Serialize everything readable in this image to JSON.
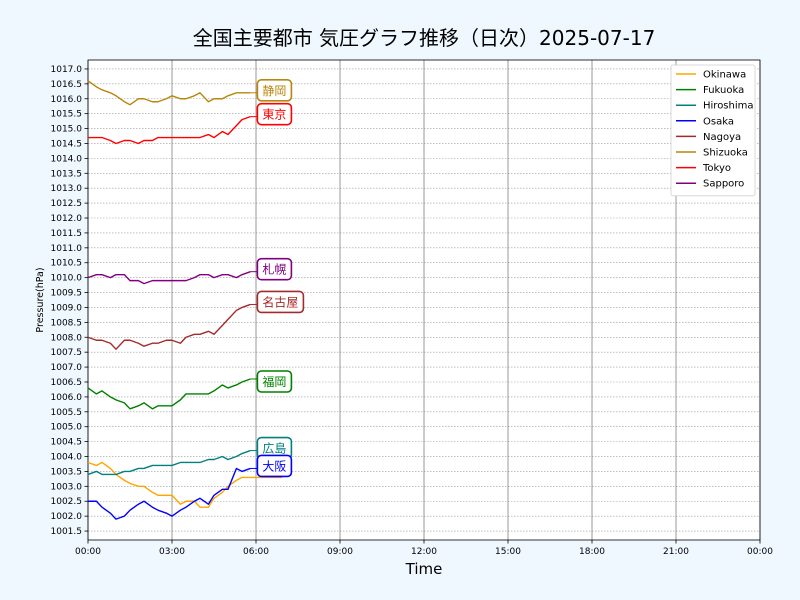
{
  "chart_data": {
    "type": "line",
    "title": "全国主要都市 気圧グラフ推移（日次）2025-07-17",
    "xlabel": "Time",
    "ylabel": "Pressure(hPa)",
    "x_ticks": [
      "00:00",
      "03:00",
      "06:00",
      "09:00",
      "12:00",
      "15:00",
      "18:00",
      "21:00",
      "00:00"
    ],
    "x_range_hours": [
      0,
      24
    ],
    "ylim": [
      1001.2,
      1017.3
    ],
    "y_tick_start": 1001.5,
    "y_tick_end": 1017.0,
    "y_tick_step": 0.5,
    "grid": true,
    "legend_position": "top-right",
    "x_hours": [
      0,
      0.3,
      0.5,
      0.8,
      1,
      1.3,
      1.5,
      1.8,
      2,
      2.3,
      2.5,
      2.8,
      3,
      3.3,
      3.5,
      3.8,
      4,
      4.3,
      4.5,
      4.8,
      5,
      5.3,
      5.5,
      5.8
    ],
    "series": [
      {
        "name": "Okinawa",
        "end_label": "",
        "color": "#ffa500",
        "values": [
          1003.8,
          1003.7,
          1003.8,
          1003.6,
          1003.4,
          1003.2,
          1003.1,
          1003.0,
          1003.0,
          1002.8,
          1002.7,
          1002.7,
          1002.7,
          1002.4,
          1002.5,
          1002.5,
          1002.3,
          1002.3,
          1002.6,
          1002.8,
          1003.0,
          1003.2,
          1003.3,
          1003.3
        ]
      },
      {
        "name": "Fukuoka",
        "end_label": "福岡",
        "color": "#008000",
        "values": [
          1006.3,
          1006.1,
          1006.2,
          1006.0,
          1005.9,
          1005.8,
          1005.6,
          1005.7,
          1005.8,
          1005.6,
          1005.7,
          1005.7,
          1005.7,
          1005.9,
          1006.1,
          1006.1,
          1006.1,
          1006.1,
          1006.2,
          1006.4,
          1006.3,
          1006.4,
          1006.5,
          1006.6
        ]
      },
      {
        "name": "Hiroshima",
        "end_label": "広島",
        "color": "#008080",
        "values": [
          1003.4,
          1003.5,
          1003.4,
          1003.4,
          1003.4,
          1003.5,
          1003.5,
          1003.6,
          1003.6,
          1003.7,
          1003.7,
          1003.7,
          1003.7,
          1003.8,
          1003.8,
          1003.8,
          1003.8,
          1003.9,
          1003.9,
          1004.0,
          1003.9,
          1004.0,
          1004.1,
          1004.2
        ]
      },
      {
        "name": "Osaka",
        "end_label": "大阪",
        "color": "#0000ff",
        "values": [
          1002.5,
          1002.5,
          1002.3,
          1002.1,
          1001.9,
          1002.0,
          1002.2,
          1002.4,
          1002.5,
          1002.3,
          1002.2,
          1002.1,
          1002.0,
          1002.2,
          1002.3,
          1002.5,
          1002.6,
          1002.4,
          1002.7,
          1002.9,
          1002.9,
          1003.6,
          1003.5,
          1003.6
        ]
      },
      {
        "name": "Nagoya",
        "end_label": "名古屋",
        "color": "#a52a2a",
        "values": [
          1008.0,
          1007.9,
          1007.9,
          1007.8,
          1007.6,
          1007.9,
          1007.9,
          1007.8,
          1007.7,
          1007.8,
          1007.8,
          1007.9,
          1007.9,
          1007.8,
          1008.0,
          1008.1,
          1008.1,
          1008.2,
          1008.1,
          1008.4,
          1008.6,
          1008.9,
          1009.0,
          1009.1
        ]
      },
      {
        "name": "Shizuoka",
        "end_label": "静岡",
        "color": "#b8860b",
        "values": [
          1016.6,
          1016.4,
          1016.3,
          1016.2,
          1016.1,
          1015.9,
          1015.8,
          1016.0,
          1016.0,
          1015.9,
          1015.9,
          1016.0,
          1016.1,
          1016.0,
          1016.0,
          1016.1,
          1016.2,
          1015.9,
          1016.0,
          1016.0,
          1016.1,
          1016.2,
          1016.2,
          1016.2
        ]
      },
      {
        "name": "Tokyo",
        "end_label": "東京",
        "color": "#ff0000",
        "values": [
          1014.7,
          1014.7,
          1014.7,
          1014.6,
          1014.5,
          1014.6,
          1014.6,
          1014.5,
          1014.6,
          1014.6,
          1014.7,
          1014.7,
          1014.7,
          1014.7,
          1014.7,
          1014.7,
          1014.7,
          1014.8,
          1014.7,
          1014.9,
          1014.8,
          1015.1,
          1015.3,
          1015.4
        ]
      },
      {
        "name": "Sapporo",
        "end_label": "札幌",
        "color": "#800080",
        "values": [
          1010.0,
          1010.1,
          1010.1,
          1010.0,
          1010.1,
          1010.1,
          1009.9,
          1009.9,
          1009.8,
          1009.9,
          1009.9,
          1009.9,
          1009.9,
          1009.9,
          1009.9,
          1010.0,
          1010.1,
          1010.1,
          1010.0,
          1010.1,
          1010.1,
          1010.0,
          1010.1,
          1010.2
        ]
      }
    ]
  }
}
